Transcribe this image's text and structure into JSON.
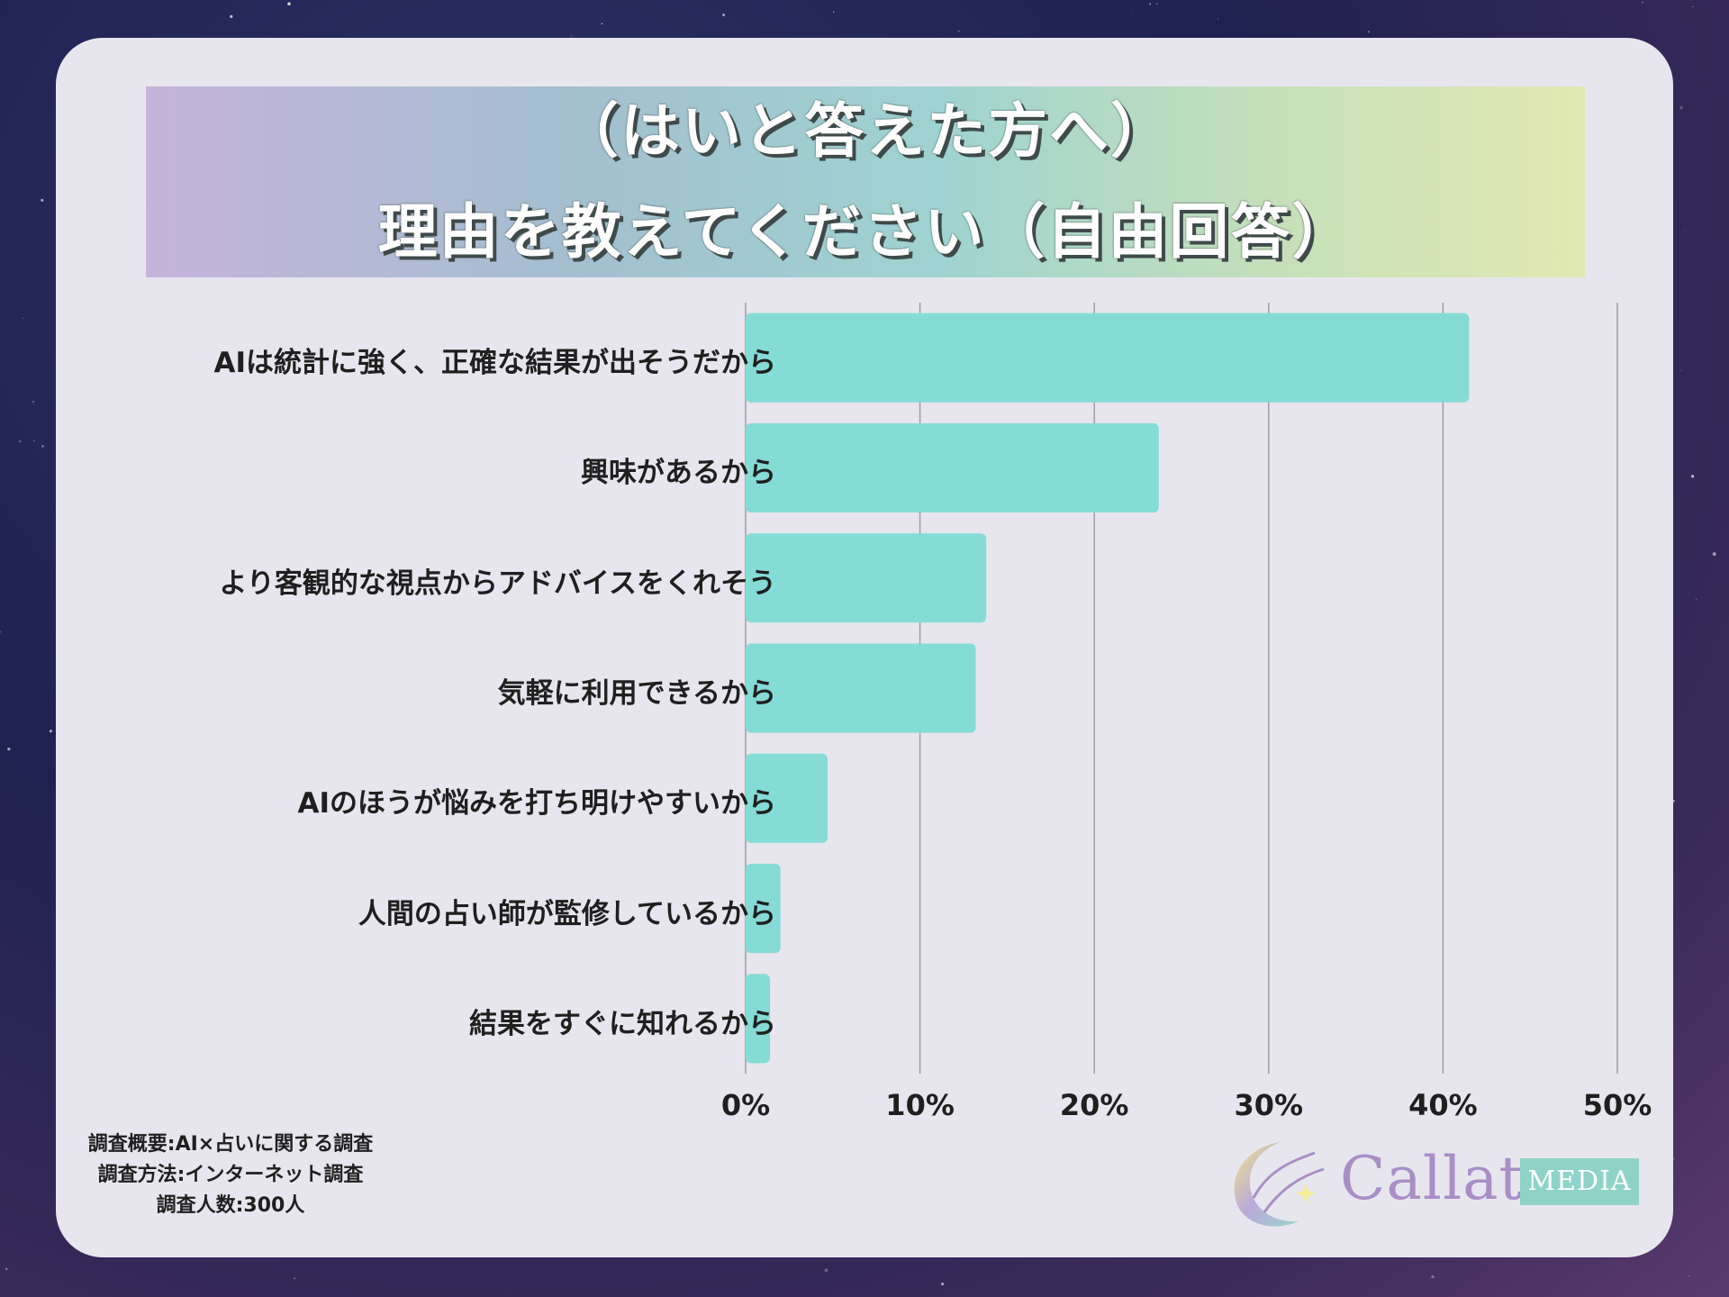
{
  "title": {
    "line1": "（はいと答えた方へ）",
    "line2": "理由を教えてください（自由回答）"
  },
  "chart_data": {
    "type": "bar",
    "orientation": "horizontal",
    "categories": [
      "AIは統計に強く、正確な結果が出そうだから",
      "興味があるから",
      "より客観的な視点からアドバイスをくれそう",
      "気軽に利用できるから",
      "AIのほうが悩みを打ち明けやすいから",
      "人間の占い師が監修しているから",
      "結果をすぐに知れるから"
    ],
    "values": [
      41.5,
      23.7,
      13.8,
      13.2,
      4.7,
      2.0,
      1.4
    ],
    "unit": "%",
    "xlim": [
      0,
      50
    ],
    "xticks": [
      "0%",
      "10%",
      "20%",
      "30%",
      "40%",
      "50%"
    ],
    "grid": true,
    "bar_color": "#85dbd6"
  },
  "footnote": {
    "line1": "調査概要:AI×占いに関する調査",
    "line2": "調査方法:インターネット調査",
    "line3": "調査人数:300人"
  },
  "logo": {
    "name": "Callat",
    "badge": "MEDIA",
    "icon": "crescent-moon-icon"
  },
  "colors": {
    "card": "#e7e6ee",
    "logo_text": "#a98fc6",
    "logo_badge": "#8fd3c8"
  }
}
